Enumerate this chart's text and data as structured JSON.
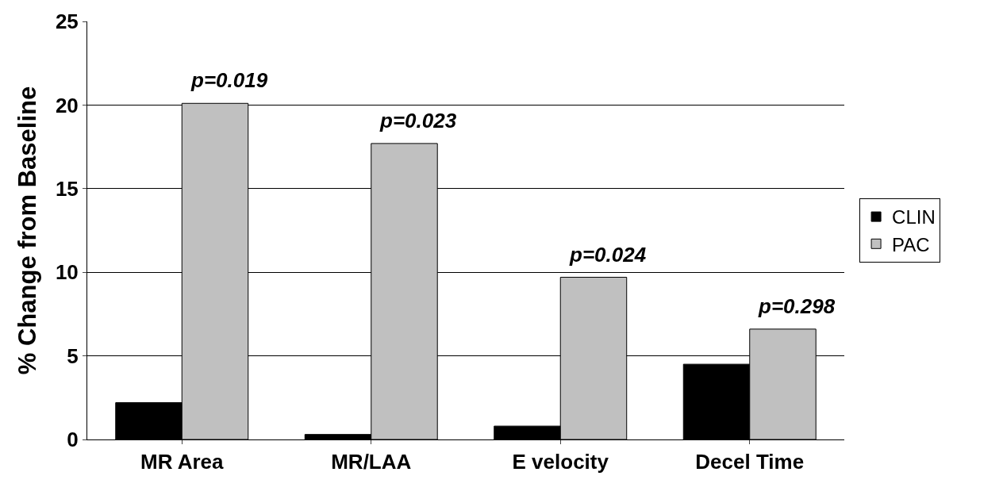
{
  "chart_data": {
    "type": "bar",
    "ylabel": "% Change from Baseline",
    "categories": [
      "MR Area",
      "MR/LAA",
      "E velocity",
      "Decel Time"
    ],
    "series": [
      {
        "name": "CLIN",
        "color": "#000000",
        "values": [
          2.2,
          0.3,
          0.8,
          4.5
        ]
      },
      {
        "name": "PAC",
        "color": "#c0c0c0",
        "values": [
          20.1,
          17.7,
          9.7,
          6.6
        ]
      }
    ],
    "ylim": [
      0,
      25
    ],
    "yticks": [
      0,
      5,
      10,
      15,
      20,
      25
    ],
    "grid": "y",
    "legend": "right",
    "annotations": [
      "p=0.019",
      "p=0.023",
      "p=0.024",
      "p=0.298"
    ]
  }
}
